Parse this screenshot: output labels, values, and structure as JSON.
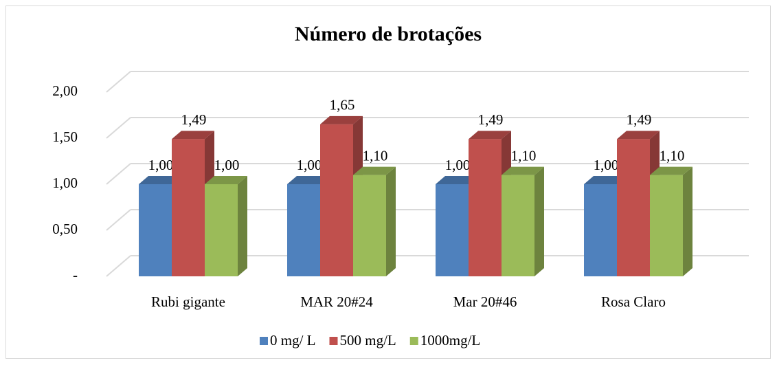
{
  "chart_data": {
    "type": "bar3d",
    "title": "Número de brotações",
    "categories": [
      "Rubi gigante",
      "MAR 20#24",
      "Mar 20#46",
      "Rosa Claro"
    ],
    "series": [
      {
        "name": "0 mg/ L",
        "color": "#4f81bd",
        "values": [
          1.0,
          1.0,
          1.0,
          1.0
        ],
        "value_labels": [
          "1,00",
          "1,00",
          "1,00",
          "1,00"
        ]
      },
      {
        "name": "500 mg/L",
        "color": "#c0504d",
        "values": [
          1.49,
          1.65,
          1.49,
          1.49
        ],
        "value_labels": [
          "1,49",
          "1,65",
          "1,49",
          "1,49"
        ]
      },
      {
        "name": "1000mg/L",
        "color": "#9bbb59",
        "values": [
          1.0,
          1.1,
          1.1,
          1.1
        ],
        "value_labels": [
          "1,00",
          "1,10",
          "1,10",
          "1,10"
        ]
      }
    ],
    "ylim": [
      0,
      2
    ],
    "yticks": [
      {
        "value": 0,
        "label": "-"
      },
      {
        "value": 0.5,
        "label": "0,50"
      },
      {
        "value": 1,
        "label": "1,00"
      },
      {
        "value": 1.5,
        "label": "1,50"
      },
      {
        "value": 2,
        "label": "2,00"
      }
    ],
    "grid": true,
    "legend": "bottom"
  }
}
